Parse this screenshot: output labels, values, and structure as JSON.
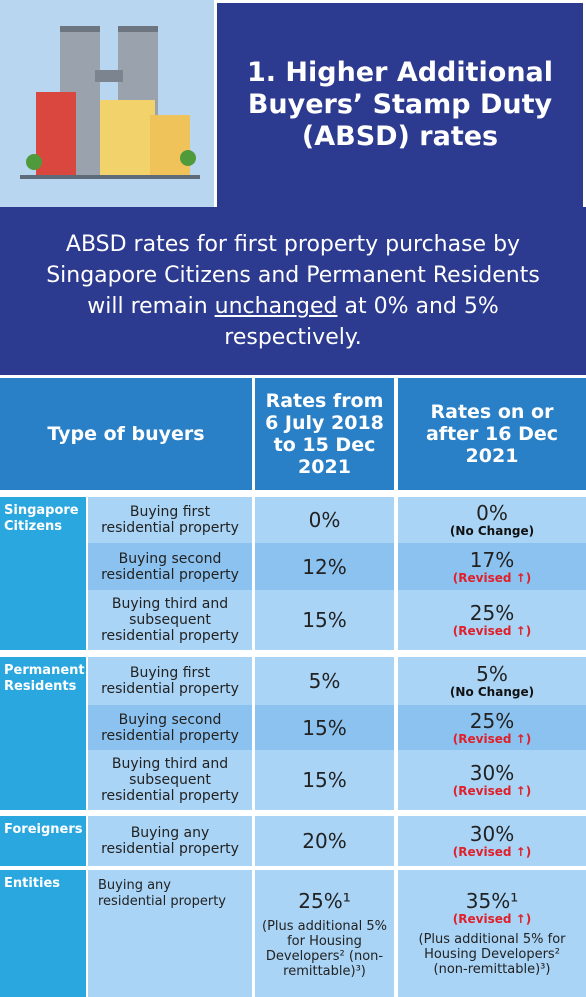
{
  "header": {
    "title": "1. Higher Additional Buyers’ Stamp Duty (ABSD) rates"
  },
  "intro": {
    "before": "ABSD rates for first property purchase by Singapore Citizens and Permanent Residents will remain",
    "underlined": "unchanged",
    "after": "at 0% and 5% respectively."
  },
  "table": {
    "headers": [
      "Type of buyers",
      "Rates from 6 July 2018 to 15 Dec 2021",
      "Rates on or after 16 Dec 2021"
    ],
    "groups": [
      {
        "name": "Singapore Citizens",
        "rows": [
          {
            "buyer": "Buying first residential property",
            "old": "0%",
            "new": "0%",
            "status": "(No Change)"
          },
          {
            "buyer": "Buying second residential property",
            "old": "12%",
            "new": "17%",
            "status": "(Revised ↑)"
          },
          {
            "buyer": "Buying third and subsequent residential property",
            "old": "15%",
            "new": "25%",
            "status": "(Revised ↑)"
          }
        ]
      },
      {
        "name": "Permanent Residents",
        "rows": [
          {
            "buyer": "Buying first residential property",
            "old": "5%",
            "new": "5%",
            "status": "(No Change)"
          },
          {
            "buyer": "Buying second residential property",
            "old": "15%",
            "new": "25%",
            "status": "(Revised ↑)"
          },
          {
            "buyer": "Buying third and subsequent residential property",
            "old": "15%",
            "new": "30%",
            "status": "(Revised ↑)"
          }
        ]
      },
      {
        "name": "Foreigners",
        "rows": [
          {
            "buyer": "Buying any residential property",
            "old": "20%",
            "new": "30%",
            "status": "(Revised ↑)"
          }
        ]
      },
      {
        "name": "Entities",
        "rows": [
          {
            "buyer": "Buying any residential property",
            "old": "25%¹",
            "old_note": "(Plus additional 5% for Housing Developers² (non-remittable)³)",
            "new": "35%¹",
            "status": "(Revised ↑)",
            "new_note": "(Plus additional 5% for Housing Developers² (non-remittable)³)"
          }
        ]
      }
    ]
  }
}
